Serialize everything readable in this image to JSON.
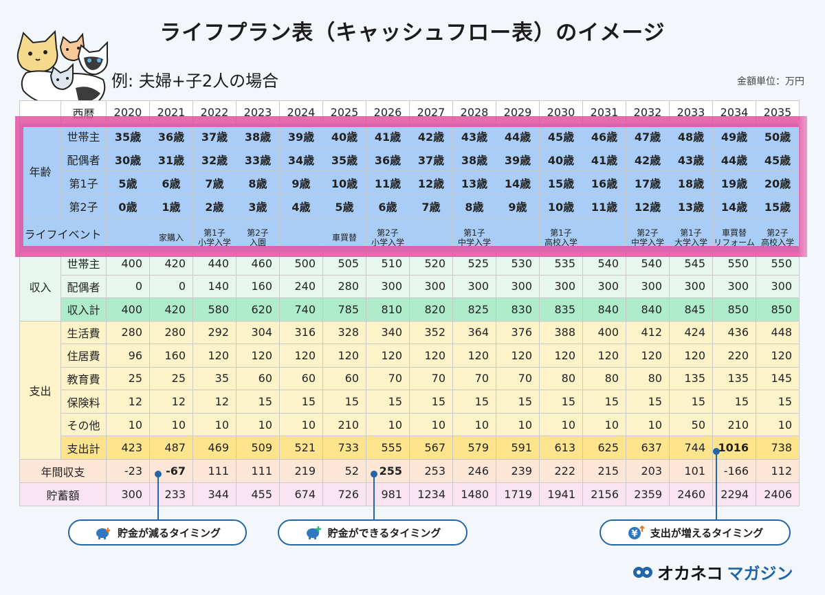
{
  "title": "ライフプラン表（キャッシュフロー表）のイメージ",
  "subtitle": "例: 夫婦+子2人の場合",
  "unit": "金額単位：万円",
  "years_label": "西暦",
  "years": [
    "2020",
    "2021",
    "2022",
    "2023",
    "2024",
    "2025",
    "2026",
    "2027",
    "2028",
    "2029",
    "2030",
    "2031",
    "2032",
    "2033",
    "2034",
    "2035"
  ],
  "age": {
    "label": "年齢",
    "rows": [
      {
        "label": "世帯主",
        "values": [
          "35歳",
          "36歳",
          "37歳",
          "38歳",
          "39歳",
          "40歳",
          "41歳",
          "42歳",
          "43歳",
          "44歳",
          "45歳",
          "46歳",
          "47歳",
          "48歳",
          "49歳",
          "50歳"
        ]
      },
      {
        "label": "配偶者",
        "values": [
          "30歳",
          "31歳",
          "32歳",
          "33歳",
          "34歳",
          "35歳",
          "36歳",
          "37歳",
          "38歳",
          "39歳",
          "40歳",
          "41歳",
          "42歳",
          "43歳",
          "44歳",
          "45歳"
        ]
      },
      {
        "label": "第1子",
        "values": [
          "5歳",
          "6歳",
          "7歳",
          "8歳",
          "9歳",
          "10歳",
          "11歳",
          "12歳",
          "13歳",
          "14歳",
          "15歳",
          "16歳",
          "17歳",
          "18歳",
          "19歳",
          "20歳"
        ]
      },
      {
        "label": "第2子",
        "values": [
          "0歳",
          "1歳",
          "2歳",
          "3歳",
          "4歳",
          "5歳",
          "6歳",
          "7歳",
          "8歳",
          "9歳",
          "10歳",
          "11歳",
          "12歳",
          "13歳",
          "14歳",
          "15歳"
        ]
      }
    ]
  },
  "events": {
    "label": "ライフイベント",
    "values": [
      [
        "",
        ""
      ],
      [
        "",
        "家購入"
      ],
      [
        "第1子",
        "小学入学"
      ],
      [
        "第2子",
        "入園"
      ],
      [
        "",
        ""
      ],
      [
        "",
        "車買替"
      ],
      [
        "第2子",
        "小学入学"
      ],
      [
        "",
        ""
      ],
      [
        "第1子",
        "中学入学"
      ],
      [
        "",
        ""
      ],
      [
        "第1子",
        "高校入学"
      ],
      [
        "",
        ""
      ],
      [
        "第2子",
        "中学入学"
      ],
      [
        "第1子",
        "大学入学"
      ],
      [
        "車買替",
        "リフォーム"
      ],
      [
        "第2子",
        "高校入学"
      ]
    ]
  },
  "income": {
    "label": "収入",
    "rows": [
      {
        "label": "世帯主",
        "values": [
          "400",
          "420",
          "440",
          "460",
          "500",
          "505",
          "510",
          "520",
          "525",
          "530",
          "535",
          "540",
          "540",
          "545",
          "550",
          "550"
        ]
      },
      {
        "label": "配偶者",
        "values": [
          "0",
          "0",
          "140",
          "160",
          "240",
          "280",
          "300",
          "300",
          "300",
          "300",
          "300",
          "300",
          "300",
          "300",
          "300",
          "300"
        ]
      }
    ],
    "total": {
      "label": "収入計",
      "values": [
        "400",
        "420",
        "580",
        "620",
        "740",
        "785",
        "810",
        "820",
        "825",
        "830",
        "835",
        "840",
        "840",
        "845",
        "850",
        "850"
      ]
    }
  },
  "expense": {
    "label": "支出",
    "rows": [
      {
        "label": "生活費",
        "values": [
          "280",
          "280",
          "292",
          "304",
          "316",
          "328",
          "340",
          "352",
          "364",
          "376",
          "388",
          "400",
          "412",
          "424",
          "436",
          "448"
        ]
      },
      {
        "label": "住居費",
        "values": [
          "96",
          "160",
          "120",
          "120",
          "120",
          "120",
          "120",
          "120",
          "120",
          "120",
          "120",
          "120",
          "120",
          "120",
          "220",
          "120"
        ]
      },
      {
        "label": "教育費",
        "values": [
          "25",
          "25",
          "35",
          "60",
          "60",
          "60",
          "70",
          "70",
          "70",
          "70",
          "80",
          "80",
          "80",
          "135",
          "135",
          "145"
        ]
      },
      {
        "label": "保険料",
        "values": [
          "12",
          "12",
          "12",
          "15",
          "15",
          "15",
          "15",
          "15",
          "15",
          "15",
          "15",
          "15",
          "15",
          "15",
          "15",
          "15"
        ]
      },
      {
        "label": "その他",
        "values": [
          "10",
          "10",
          "10",
          "10",
          "10",
          "210",
          "10",
          "10",
          "10",
          "10",
          "10",
          "10",
          "10",
          "50",
          "210",
          "10"
        ]
      }
    ],
    "total": {
      "label": "支出計",
      "values": [
        "423",
        "487",
        "469",
        "509",
        "521",
        "733",
        "555",
        "567",
        "579",
        "591",
        "613",
        "625",
        "637",
        "744",
        "1016",
        "738"
      ]
    }
  },
  "balance": {
    "label": "年間収支",
    "values": [
      "-23",
      "-67",
      "111",
      "111",
      "219",
      "52",
      "255",
      "253",
      "246",
      "239",
      "222",
      "215",
      "203",
      "101",
      "-166",
      "112"
    ]
  },
  "savings": {
    "label": "貯蓄額",
    "values": [
      "300",
      "233",
      "344",
      "455",
      "674",
      "726",
      "981",
      "1234",
      "1480",
      "1719",
      "1941",
      "2156",
      "2359",
      "2460",
      "2294",
      "2406"
    ]
  },
  "callouts": {
    "decrease": "貯金が減るタイミング",
    "increase": "貯金ができるタイミング",
    "expense_up": "支出が増えるタイミング"
  },
  "logo": {
    "part1": "オカネコ",
    "part2": "マガジン"
  },
  "colors": {
    "accent": "#2266a8",
    "highlight": "#e252a2",
    "age_bg": "#a9cdf6",
    "income_total": "#aeeccb",
    "expense_total": "#fde48d"
  },
  "icons": [
    "piggy-bank-down-icon",
    "piggy-bank-plus-icon",
    "yen-up-icon",
    "cats-illustration",
    "okaneko-logo-icon"
  ]
}
